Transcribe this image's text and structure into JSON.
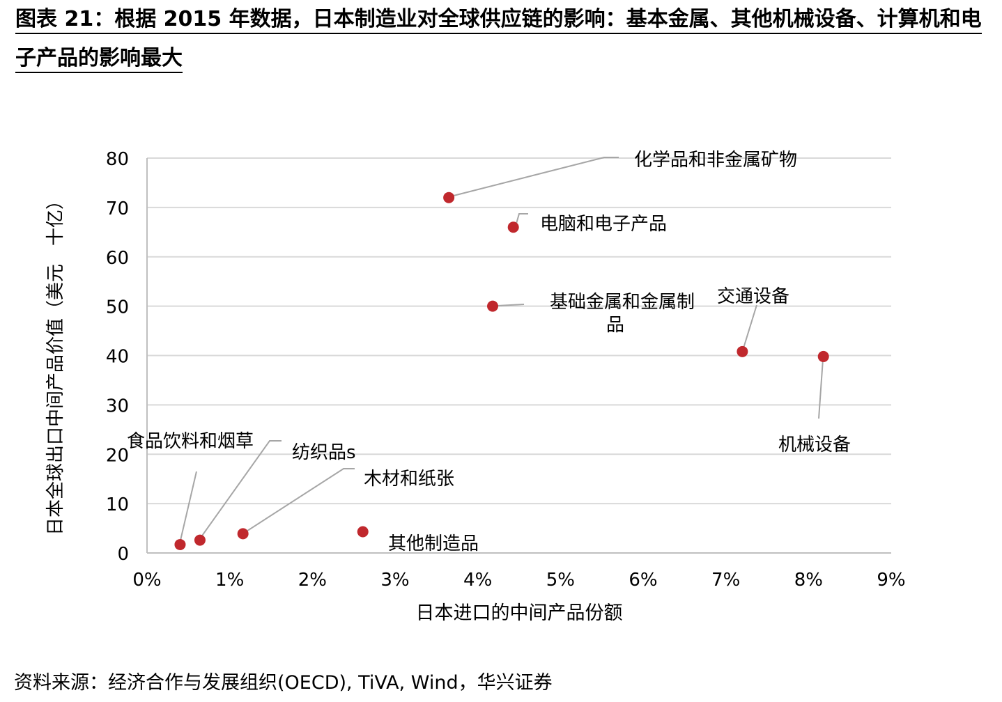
{
  "title": "图表 21：根据 2015 年数据，日本制造业对全球供应链的影响：基本金属、其他机械设备、计算机和电子产品的影响最大",
  "source": "资料来源：经济合作与发展组织(OECD), TiVA, Wind，华兴证券",
  "chart_data": {
    "type": "scatter",
    "xlabel": "日本进口的中间产品份额",
    "ylabel": "日本全球出口中间产品价值（美元　十亿）",
    "xlim": [
      0,
      9
    ],
    "ylim": [
      0,
      80
    ],
    "x_ticks": [
      0,
      1,
      2,
      3,
      4,
      5,
      6,
      7,
      8,
      9
    ],
    "x_tick_labels": [
      "0%",
      "1%",
      "2%",
      "3%",
      "4%",
      "5%",
      "6%",
      "7%",
      "8%",
      "9%"
    ],
    "y_ticks": [
      0,
      10,
      20,
      30,
      40,
      50,
      60,
      70,
      80
    ],
    "y_tick_labels": [
      "0",
      "10",
      "20",
      "30",
      "40",
      "50",
      "60",
      "70",
      "80"
    ],
    "grid": true,
    "marker_color": "#c0282d",
    "points": [
      {
        "label": "化学品和非金属矿物",
        "x": 3.65,
        "y": 72
      },
      {
        "label": "电脑和电子产品",
        "x": 4.43,
        "y": 66
      },
      {
        "label": "基础金属和金属制品",
        "x": 4.18,
        "y": 50
      },
      {
        "label": "交通设备",
        "x": 7.2,
        "y": 40.8
      },
      {
        "label": "机械设备",
        "x": 8.18,
        "y": 39.8
      },
      {
        "label": "食品饮料和烟草",
        "x": 0.4,
        "y": 1.7
      },
      {
        "label": "纺织品s",
        "x": 0.64,
        "y": 2.6
      },
      {
        "label": "木材和纸张",
        "x": 1.16,
        "y": 3.9
      },
      {
        "label": "其他制造品",
        "x": 2.61,
        "y": 4.3
      }
    ]
  }
}
